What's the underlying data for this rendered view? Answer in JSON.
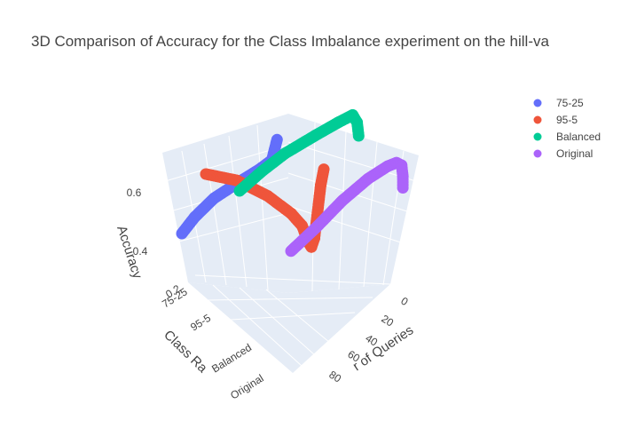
{
  "chart_data": {
    "type": "scatter3d",
    "title": "3D Comparison of Accuracy for the Class Imbalance experiment on the hill-va",
    "x_axis": {
      "label": "Number of Queries",
      "visible_label": "r of Queries",
      "ticks": [
        "0",
        "20",
        "40",
        "60",
        "80"
      ],
      "range": [
        0,
        100
      ]
    },
    "y_axis": {
      "label": "Class Ra",
      "ticks": [
        "75-25",
        "95-5",
        "Balanced",
        "Original"
      ],
      "clipped_tick_text": "0.2"
    },
    "z_axis": {
      "label": "Accuracy",
      "ticks": [
        "0.4",
        "0.6"
      ],
      "range": [
        0.2,
        0.72
      ]
    },
    "legend_position": "top-right",
    "series": [
      {
        "name": "75-25",
        "color": "#636efa",
        "points": [
          [
            0,
            0.45
          ],
          [
            10,
            0.5
          ],
          [
            25,
            0.55
          ],
          [
            45,
            0.58
          ],
          [
            60,
            0.6
          ],
          [
            70,
            0.62
          ],
          [
            72,
            0.66
          ],
          [
            74,
            0.7
          ]
        ]
      },
      {
        "name": "95-5",
        "color": "#ef553b",
        "points": [
          [
            0,
            0.6
          ],
          [
            20,
            0.58
          ],
          [
            40,
            0.52
          ],
          [
            55,
            0.45
          ],
          [
            62,
            0.4
          ],
          [
            66,
            0.33
          ],
          [
            68,
            0.31
          ],
          [
            70,
            0.35
          ],
          [
            74,
            0.58
          ],
          [
            76,
            0.65
          ]
        ]
      },
      {
        "name": "Balanced",
        "color": "#00cc96",
        "points": [
          [
            0,
            0.55
          ],
          [
            15,
            0.6
          ],
          [
            30,
            0.64
          ],
          [
            50,
            0.67
          ],
          [
            65,
            0.69
          ],
          [
            75,
            0.7
          ],
          [
            78,
            0.66
          ],
          [
            79,
            0.6
          ]
        ]
      },
      {
        "name": "Original",
        "color": "#ab63fa",
        "points": [
          [
            0,
            0.42
          ],
          [
            20,
            0.48
          ],
          [
            40,
            0.55
          ],
          [
            60,
            0.6
          ],
          [
            75,
            0.62
          ],
          [
            82,
            0.62
          ],
          [
            86,
            0.6
          ],
          [
            87,
            0.55
          ],
          [
            87,
            0.5
          ]
        ]
      }
    ]
  }
}
